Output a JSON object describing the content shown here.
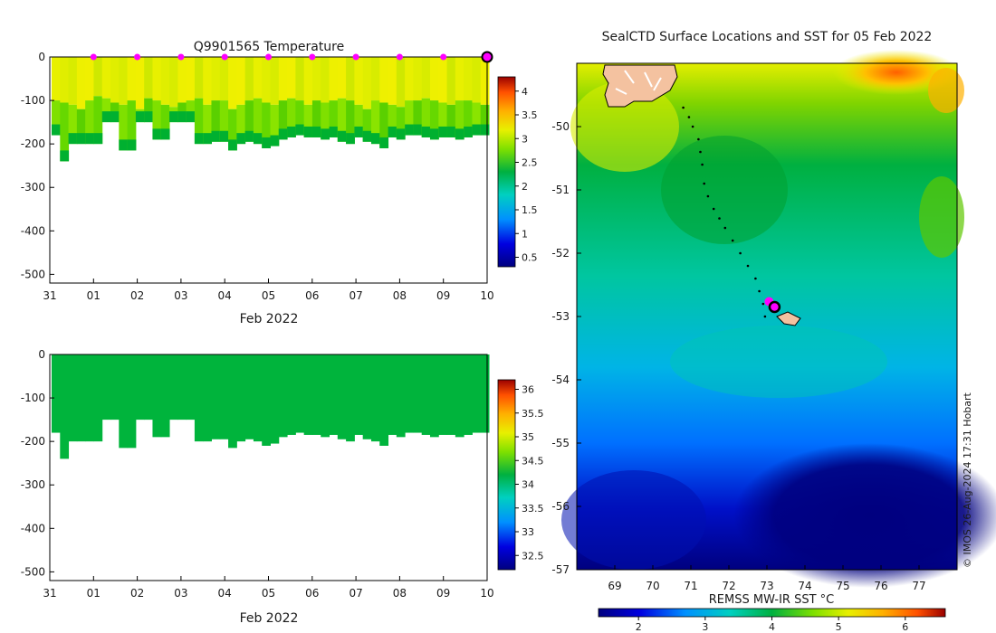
{
  "chart_data": [
    {
      "type": "heatmap",
      "name": "temperature-section",
      "title": "Q9901565  Temperature",
      "xlabel": "Feb 2022",
      "ylabel": "",
      "xlim": [
        0,
        10
      ],
      "ylim": [
        -520,
        0
      ],
      "x_ticks": [
        "31",
        "01",
        "02",
        "03",
        "04",
        "05",
        "06",
        "07",
        "08",
        "09",
        "10"
      ],
      "y_ticks": [
        0,
        -100,
        -200,
        -300,
        -400,
        -500
      ],
      "profile_max_depth": [
        -180,
        -240,
        -200,
        -200,
        -200,
        -200,
        -150,
        -150,
        -215,
        -215,
        -150,
        -150,
        -190,
        -190,
        -150,
        -150,
        -150,
        -200,
        -200,
        -195,
        -195,
        -215,
        -200,
        -195,
        -200,
        -210,
        -205,
        -190,
        -185,
        -180,
        -185,
        -185,
        -190,
        -185,
        -195,
        -200,
        -185,
        -195,
        -200,
        -210,
        -185,
        -190,
        -180,
        -180,
        -185,
        -190,
        -185,
        -185,
        -190,
        -185,
        -180,
        -180
      ],
      "mixed_layer_depth": [
        -100,
        -105,
        -110,
        -120,
        -100,
        -90,
        -95,
        -105,
        -110,
        -100,
        -120,
        -95,
        -100,
        -110,
        -115,
        -105,
        -100,
        -95,
        -110,
        -100,
        -100,
        -120,
        -110,
        -100,
        -95,
        -105,
        -110,
        -100,
        -95,
        -100,
        -110,
        -100,
        -105,
        -100,
        -95,
        -100,
        -110,
        -120,
        -100,
        -105,
        -110,
        -115,
        -100,
        -100,
        -95,
        -100,
        -105,
        -110,
        -100,
        -100,
        -105,
        -110
      ],
      "surface_markers_day": [
        1,
        2,
        3,
        4,
        5,
        6,
        7,
        8,
        9
      ],
      "current_day": 10,
      "colorbar": {
        "min": 0.3,
        "max": 4.3,
        "ticks": [
          0.5,
          1,
          1.5,
          2,
          2.5,
          3,
          3.5,
          4
        ]
      }
    },
    {
      "type": "heatmap",
      "name": "salinity-section",
      "title": "",
      "xlabel": "Feb 2022",
      "xlim": [
        0,
        10
      ],
      "ylim": [
        -520,
        0
      ],
      "x_ticks": [
        "31",
        "01",
        "02",
        "03",
        "04",
        "05",
        "06",
        "07",
        "08",
        "09",
        "10"
      ],
      "y_ticks": [
        0,
        -100,
        -200,
        -300,
        -400,
        -500
      ],
      "colorbar": {
        "min": 32.2,
        "max": 36.2,
        "ticks": [
          32.5,
          33,
          33.5,
          34,
          34.5,
          35,
          35.5,
          36
        ]
      }
    },
    {
      "type": "heatmap",
      "name": "sst-map",
      "title": "SealCTD Surface Locations and SST for 05 Feb 2022",
      "xlim": [
        68,
        78
      ],
      "ylim": [
        -57,
        -49
      ],
      "x_ticks": [
        69,
        70,
        71,
        72,
        73,
        74,
        75,
        76,
        77
      ],
      "y_ticks": [
        -50,
        -51,
        -52,
        -53,
        -54,
        -55,
        -56,
        -57
      ],
      "track_lon": [
        70.8,
        70.95,
        71.05,
        71.2,
        71.25,
        71.3,
        71.35,
        71.45,
        71.6,
        71.75,
        71.9,
        72.1,
        72.3,
        72.5,
        72.7,
        72.8,
        72.9,
        72.95
      ],
      "track_lat": [
        -49.7,
        -49.85,
        -50.0,
        -50.2,
        -50.4,
        -50.6,
        -50.9,
        -51.1,
        -51.3,
        -51.45,
        -51.6,
        -51.8,
        -52.0,
        -52.2,
        -52.4,
        -52.6,
        -52.8,
        -53.0
      ],
      "current_position": {
        "lon": 73.2,
        "lat": -52.85
      },
      "colorbar_label": "REMSS MW-IR SST °C",
      "colorbar": {
        "min": 1.4,
        "max": 6.6,
        "ticks": [
          2,
          3,
          4,
          5,
          6
        ]
      },
      "credit": "© IMOS 26-Aug-2024 17:31 Hobart"
    }
  ]
}
